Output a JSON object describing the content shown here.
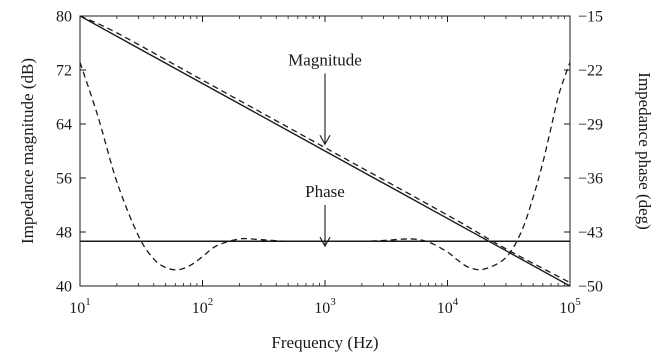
{
  "chart_data": {
    "type": "line",
    "title": "",
    "xlabel": "Frequency (Hz)",
    "ylabel_left": "Impedance magnitude (dB)",
    "ylabel_right": "Impedance phase (deg)",
    "x_scale": "log",
    "xlim": [
      10,
      100000
    ],
    "ylim_left": [
      40,
      80
    ],
    "ylim_right": [
      -50,
      -15
    ],
    "x_ticks": [
      {
        "value": 10,
        "base": "10",
        "exp": "1"
      },
      {
        "value": 100,
        "base": "10",
        "exp": "2"
      },
      {
        "value": 1000,
        "base": "10",
        "exp": "3"
      },
      {
        "value": 10000,
        "base": "10",
        "exp": "4"
      },
      {
        "value": 100000,
        "base": "10",
        "exp": "5"
      }
    ],
    "y_ticks_left": [
      "40",
      "48",
      "56",
      "64",
      "72",
      "80"
    ],
    "y_ticks_right": [
      "−50",
      "−43",
      "−36",
      "−29",
      "−22",
      "−15"
    ],
    "grid": false,
    "series": [
      {
        "name": "",
        "style": "solid",
        "axis": "left",
        "x": [
          10,
          100000
        ],
        "y": [
          80,
          40
        ]
      },
      {
        "name": "",
        "style": "dashed",
        "axis": "left",
        "x": [
          10,
          20,
          100,
          1000,
          10000,
          30000,
          100000
        ],
        "y": [
          80,
          77.5,
          70.5,
          60.5,
          50.5,
          45.5,
          40.5
        ]
      },
      {
        "name": "",
        "style": "solid",
        "axis": "right",
        "x": [
          10,
          100000
        ],
        "y": [
          -44.2,
          -44.2
        ]
      },
      {
        "name": "",
        "style": "dashed",
        "axis": "right",
        "x": [
          10,
          14,
          20,
          30,
          40,
          50,
          63,
          80,
          100,
          130,
          200,
          300,
          500,
          1000,
          2000,
          3000,
          5000,
          7000,
          10000,
          12000,
          15000,
          20000,
          30000,
          40000,
          50000,
          60000,
          70000,
          80000,
          90000,
          100000
        ],
        "y": [
          -21,
          -28,
          -36.5,
          -43.5,
          -46.5,
          -47.6,
          -47.9,
          -47.3,
          -46.2,
          -44.8,
          -43.9,
          -44.0,
          -44.2,
          -44.2,
          -44.2,
          -44.1,
          -43.9,
          -44.3,
          -45.6,
          -46.6,
          -47.6,
          -47.8,
          -46.3,
          -43,
          -38.5,
          -34,
          -29.5,
          -25.5,
          -23,
          -21
        ]
      }
    ],
    "annotations": [
      {
        "text": "Magnitude",
        "x": 1000,
        "axis": "left",
        "arrow_from": 71.5,
        "arrow_to": 61
      },
      {
        "text": "Phase",
        "x": 1000,
        "axis": "left",
        "arrow_from": 52,
        "arrow_to": 45.9
      }
    ]
  }
}
